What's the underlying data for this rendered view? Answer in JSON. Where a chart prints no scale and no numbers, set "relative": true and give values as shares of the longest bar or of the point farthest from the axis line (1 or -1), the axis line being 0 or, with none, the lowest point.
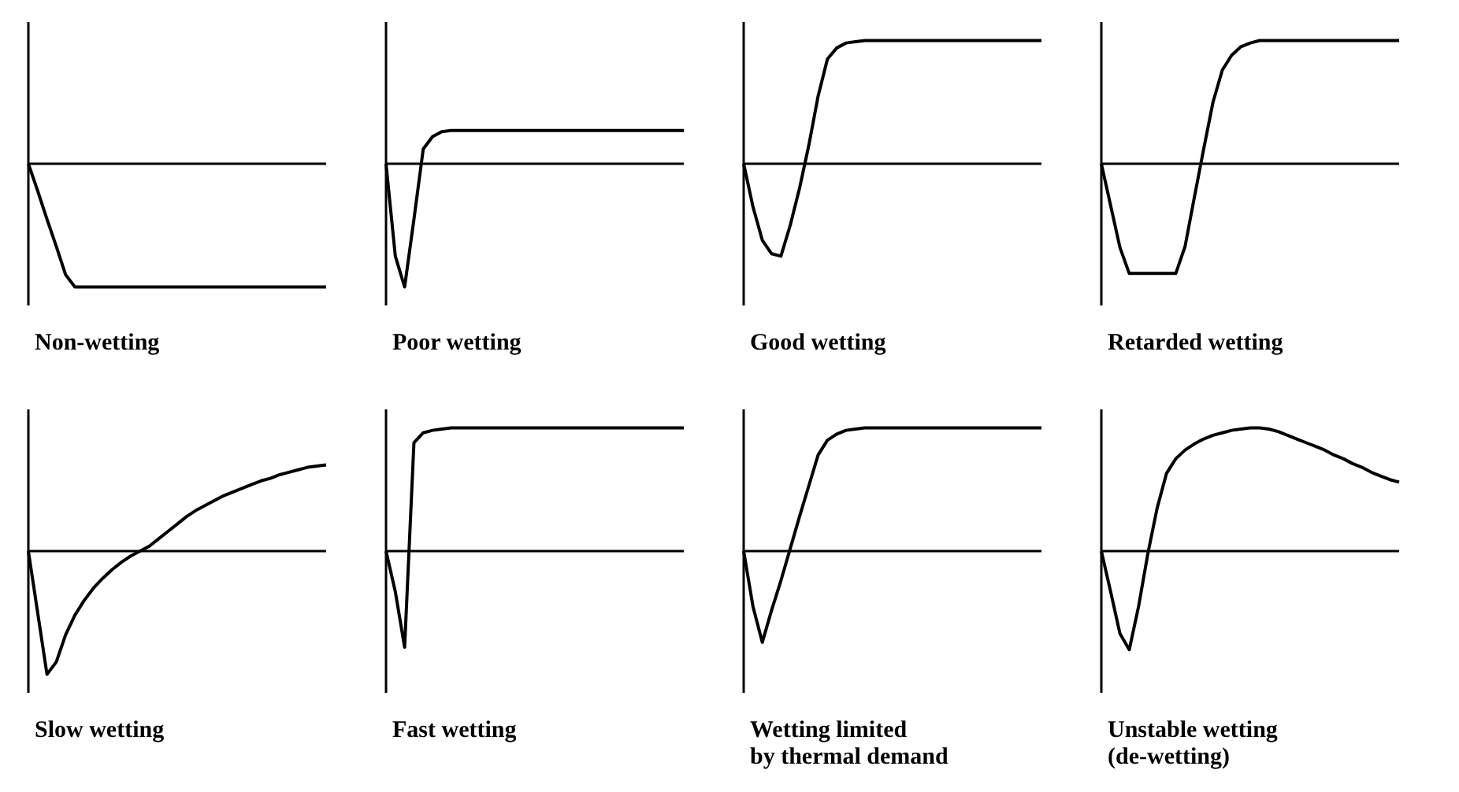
{
  "chart_data": [
    {
      "type": "line",
      "title": "Non-wetting",
      "relative": true,
      "color": "#000000",
      "categories": [
        null,
        null,
        null,
        null,
        null,
        null,
        null,
        null,
        null,
        null,
        null,
        null,
        null,
        null,
        null,
        null,
        null,
        null,
        null,
        null,
        null,
        null,
        null,
        null,
        null,
        null,
        null,
        null,
        null,
        null,
        null,
        null,
        null
      ],
      "values": [
        0,
        -0.22,
        -0.45,
        -0.67,
        -0.9,
        -1,
        -1,
        -1,
        -1,
        -1,
        -1,
        -1,
        -1,
        -1,
        -1,
        -1,
        -1,
        -1,
        -1,
        -1,
        -1,
        -1,
        -1,
        -1,
        -1,
        -1,
        -1,
        -1,
        -1,
        -1,
        -1,
        -1,
        -1
      ]
    },
    {
      "type": "line",
      "title": "Poor wetting",
      "relative": true,
      "color": "#000000",
      "categories": [
        null,
        null,
        null,
        null,
        null,
        null,
        null,
        null,
        null,
        null,
        null,
        null,
        null,
        null,
        null,
        null,
        null,
        null,
        null,
        null,
        null,
        null,
        null,
        null,
        null,
        null,
        null,
        null,
        null,
        null,
        null,
        null,
        null
      ],
      "values": [
        0,
        -0.75,
        -1,
        -0.45,
        0.12,
        0.22,
        0.26,
        0.27,
        0.27,
        0.27,
        0.27,
        0.27,
        0.27,
        0.27,
        0.27,
        0.27,
        0.27,
        0.27,
        0.27,
        0.27,
        0.27,
        0.27,
        0.27,
        0.27,
        0.27,
        0.27,
        0.27,
        0.27,
        0.27,
        0.27,
        0.27,
        0.27,
        0.27
      ]
    },
    {
      "type": "line",
      "title": "Good wetting",
      "relative": true,
      "color": "#000000",
      "categories": [
        null,
        null,
        null,
        null,
        null,
        null,
        null,
        null,
        null,
        null,
        null,
        null,
        null,
        null,
        null,
        null,
        null,
        null,
        null,
        null,
        null,
        null,
        null,
        null,
        null,
        null,
        null,
        null,
        null,
        null,
        null,
        null,
        null
      ],
      "values": [
        0,
        -0.35,
        -0.62,
        -0.73,
        -0.75,
        -0.5,
        -0.2,
        0.15,
        0.55,
        0.85,
        0.94,
        0.98,
        0.99,
        1,
        1,
        1,
        1,
        1,
        1,
        1,
        1,
        1,
        1,
        1,
        1,
        1,
        1,
        1,
        1,
        1,
        1,
        1,
        1
      ]
    },
    {
      "type": "line",
      "title": "Retarded wetting",
      "relative": true,
      "color": "#000000",
      "categories": [
        null,
        null,
        null,
        null,
        null,
        null,
        null,
        null,
        null,
        null,
        null,
        null,
        null,
        null,
        null,
        null,
        null,
        null,
        null,
        null,
        null,
        null,
        null,
        null,
        null,
        null,
        null,
        null,
        null,
        null,
        null,
        null,
        null
      ],
      "values": [
        0,
        -0.34,
        -0.68,
        -0.89,
        -0.89,
        -0.89,
        -0.89,
        -0.89,
        -0.89,
        -0.67,
        -0.27,
        0.12,
        0.5,
        0.76,
        0.88,
        0.95,
        0.98,
        1,
        1,
        1,
        1,
        1,
        1,
        1,
        1,
        1,
        1,
        1,
        1,
        1,
        1,
        1,
        1
      ]
    },
    {
      "type": "line",
      "title": "Slow wetting",
      "relative": true,
      "color": "#000000",
      "categories": [
        null,
        null,
        null,
        null,
        null,
        null,
        null,
        null,
        null,
        null,
        null,
        null,
        null,
        null,
        null,
        null,
        null,
        null,
        null,
        null,
        null,
        null,
        null,
        null,
        null,
        null,
        null,
        null,
        null,
        null,
        null,
        null,
        null
      ],
      "values": [
        0,
        -0.5,
        -1,
        -0.9,
        -0.68,
        -0.52,
        -0.4,
        -0.3,
        -0.22,
        -0.15,
        -0.09,
        -0.04,
        0,
        0.04,
        0.1,
        0.16,
        0.22,
        0.28,
        0.33,
        0.37,
        0.41,
        0.45,
        0.48,
        0.51,
        0.54,
        0.57,
        0.59,
        0.62,
        0.64,
        0.66,
        0.68,
        0.69,
        0.7
      ]
    },
    {
      "type": "line",
      "title": "Fast wetting",
      "relative": true,
      "color": "#000000",
      "categories": [
        null,
        null,
        null,
        null,
        null,
        null,
        null,
        null,
        null,
        null,
        null,
        null,
        null,
        null,
        null,
        null,
        null,
        null,
        null,
        null,
        null,
        null,
        null,
        null,
        null,
        null,
        null,
        null,
        null,
        null,
        null,
        null,
        null
      ],
      "values": [
        0,
        -0.33,
        -0.78,
        0.88,
        0.96,
        0.98,
        0.99,
        1,
        1,
        1,
        1,
        1,
        1,
        1,
        1,
        1,
        1,
        1,
        1,
        1,
        1,
        1,
        1,
        1,
        1,
        1,
        1,
        1,
        1,
        1,
        1,
        1,
        1
      ]
    },
    {
      "type": "line",
      "title": "Wetting limited\nby thermal demand",
      "relative": true,
      "color": "#000000",
      "categories": [
        null,
        null,
        null,
        null,
        null,
        null,
        null,
        null,
        null,
        null,
        null,
        null,
        null,
        null,
        null,
        null,
        null,
        null,
        null,
        null,
        null,
        null,
        null,
        null,
        null,
        null,
        null,
        null,
        null,
        null,
        null,
        null,
        null
      ],
      "values": [
        0,
        -0.45,
        -0.74,
        -0.48,
        -0.24,
        0.02,
        0.28,
        0.53,
        0.78,
        0.9,
        0.95,
        0.98,
        0.99,
        1,
        1,
        1,
        1,
        1,
        1,
        1,
        1,
        1,
        1,
        1,
        1,
        1,
        1,
        1,
        1,
        1,
        1,
        1,
        1
      ]
    },
    {
      "type": "line",
      "title": "Unstable wetting\n(de-wetting)",
      "relative": true,
      "color": "#000000",
      "categories": [
        null,
        null,
        null,
        null,
        null,
        null,
        null,
        null,
        null,
        null,
        null,
        null,
        null,
        null,
        null,
        null,
        null,
        null,
        null,
        null,
        null,
        null,
        null,
        null,
        null,
        null,
        null,
        null,
        null,
        null,
        null,
        null,
        null
      ],
      "values": [
        0,
        -0.33,
        -0.67,
        -0.8,
        -0.45,
        -0.02,
        0.35,
        0.63,
        0.75,
        0.82,
        0.87,
        0.91,
        0.94,
        0.96,
        0.98,
        0.99,
        1,
        1,
        0.99,
        0.97,
        0.94,
        0.91,
        0.88,
        0.85,
        0.82,
        0.78,
        0.75,
        0.71,
        0.68,
        0.64,
        0.61,
        0.58,
        0.56
      ]
    }
  ]
}
